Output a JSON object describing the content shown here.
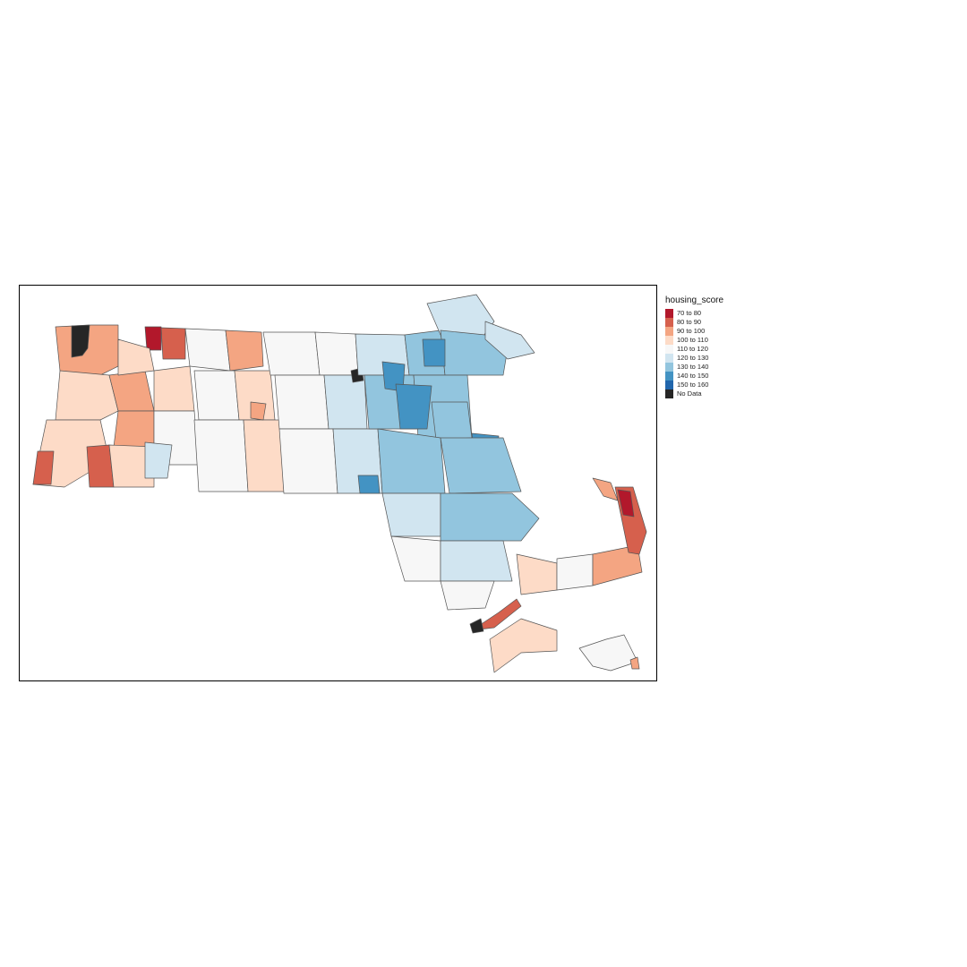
{
  "legend": {
    "title": "housing_score",
    "classes": [
      {
        "label": "70 to 80",
        "color": "#b2182b"
      },
      {
        "label": "80 to 90",
        "color": "#d6604d"
      },
      {
        "label": "90 to 100",
        "color": "#f4a582"
      },
      {
        "label": "100 to 110",
        "color": "#fddbc7"
      },
      {
        "label": "110 to 120",
        "color": "#f7f7f7"
      },
      {
        "label": "120 to 130",
        "color": "#d1e5f0"
      },
      {
        "label": "130 to 140",
        "color": "#92c5de"
      },
      {
        "label": "140 to 150",
        "color": "#4393c3"
      },
      {
        "label": "150 to 160",
        "color": "#2166ac"
      },
      {
        "label": "No Data",
        "color": "#262626"
      }
    ]
  }
}
